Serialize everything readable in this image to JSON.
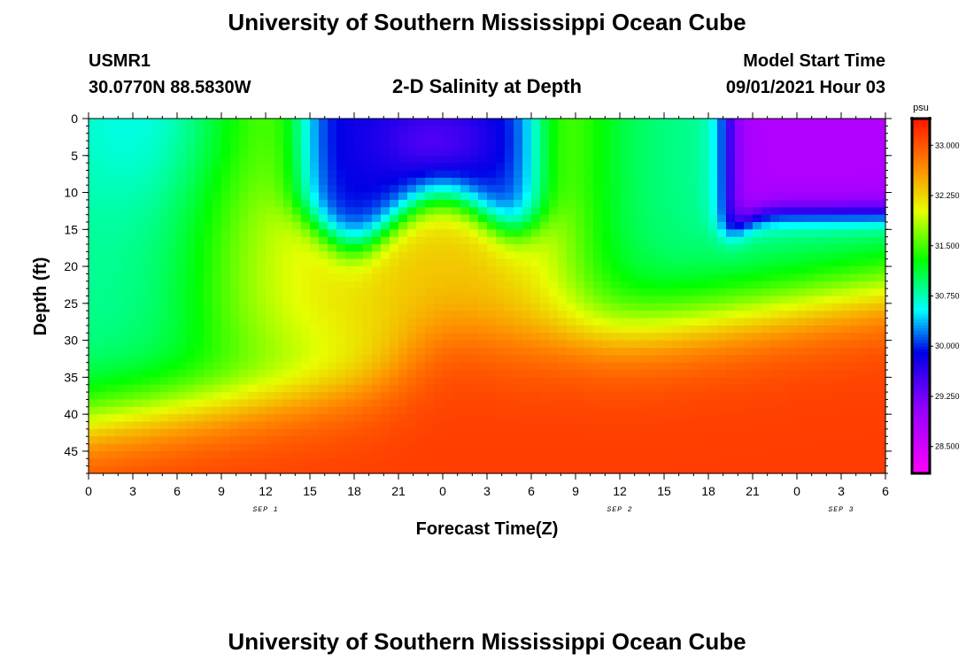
{
  "header": {
    "title": "University of Southern Mississippi Ocean Cube",
    "station": "USMR1",
    "coords": "30.0770N  88.5830W",
    "subtitle": "2-D Salinity at Depth",
    "model_label": "Model Start Time",
    "model_time": "09/01/2021 Hour 03"
  },
  "footer": {
    "title": "University of Southern Mississippi Ocean Cube"
  },
  "chart_data": {
    "type": "heatmap",
    "title": "2-D Salinity at Depth",
    "xlabel": "Forecast Time(Z)",
    "ylabel": "Depth (ft)",
    "x_tick_labels": [
      "0",
      "3",
      "6",
      "9",
      "12",
      "15",
      "18",
      "21",
      "0",
      "3",
      "6",
      "9",
      "12",
      "15",
      "18",
      "21",
      "0",
      "3",
      "6"
    ],
    "x_range_hours": [
      0,
      54
    ],
    "day_labels": [
      {
        "label": "SEP 1",
        "hour": 12
      },
      {
        "label": "SEP 2",
        "hour": 36
      },
      {
        "label": "SEP 3",
        "hour": 51
      }
    ],
    "y_ticks": [
      0,
      5,
      10,
      15,
      20,
      25,
      30,
      35,
      40,
      45
    ],
    "ylim": [
      0,
      48
    ],
    "colorbar": {
      "unit": "psu",
      "ticks": [
        "33.000",
        "32.250",
        "31.500",
        "30.750",
        "30.000",
        "29.250",
        "28.500"
      ],
      "vmin": 28.1,
      "vmax": 33.4
    },
    "colors": {
      "low": "#ff00ff",
      "high": "#ff1a00"
    }
  }
}
